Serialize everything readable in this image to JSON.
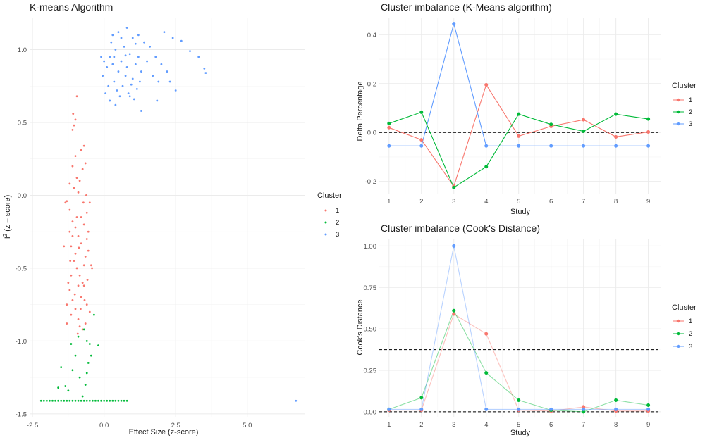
{
  "colors": {
    "1": "#F8766D",
    "2": "#00BA38",
    "3": "#619CFF"
  },
  "chart_data": [
    {
      "id": "kmeans",
      "type": "scatter",
      "title": "K-means Algorithm",
      "xlabel": "Effect Size (z-score)",
      "ylabel_prefix": "I",
      "ylabel_sup": "2",
      "ylabel_suffix": " (z – score)",
      "xlim": [
        -2.6,
        7.0
      ],
      "ylim": [
        -1.52,
        1.22
      ],
      "xticks": [
        -2.5,
        0.0,
        2.5,
        5.0
      ],
      "xtick_labels": [
        "-2.5",
        "0.0",
        "2.5",
        "5.0"
      ],
      "yticks": [
        -1.5,
        -1.0,
        -0.5,
        0.0,
        0.5,
        1.0
      ],
      "ytick_labels": [
        "-1.5",
        "-1.0",
        "-0.5",
        "0.0",
        "0.5",
        "1.0"
      ],
      "legend": {
        "title": "Cluster",
        "labels": [
          "1",
          "2",
          "3"
        ],
        "placement": "right"
      },
      "series": [
        {
          "name": "1",
          "points": [
            [
              -1.3,
              -0.04
            ],
            [
              -1.2,
              -0.1
            ],
            [
              -1.1,
              -0.18
            ],
            [
              -1.0,
              -0.22
            ],
            [
              -0.9,
              -0.28
            ],
            [
              -0.8,
              -0.33
            ],
            [
              -0.7,
              -0.2
            ],
            [
              -0.6,
              -0.12
            ],
            [
              -0.5,
              -0.05
            ],
            [
              -1.15,
              -0.35
            ],
            [
              -1.05,
              -0.45
            ],
            [
              -0.95,
              -0.5
            ],
            [
              -0.85,
              -0.55
            ],
            [
              -0.75,
              -0.6
            ],
            [
              -0.65,
              -0.42
            ],
            [
              -0.55,
              -0.38
            ],
            [
              -1.2,
              -0.65
            ],
            [
              -1.1,
              -0.72
            ],
            [
              -1.0,
              -0.78
            ],
            [
              -0.9,
              -0.85
            ],
            [
              -0.8,
              -0.7
            ],
            [
              -0.7,
              -0.62
            ],
            [
              -0.6,
              -0.75
            ],
            [
              -0.5,
              -0.8
            ],
            [
              -1.3,
              -0.88
            ],
            [
              -1.15,
              -0.82
            ],
            [
              -0.85,
              -0.9
            ],
            [
              -0.45,
              -0.48
            ],
            [
              -0.42,
              -0.5
            ],
            [
              -1.05,
              0.05
            ],
            [
              -0.95,
              0.12
            ],
            [
              -0.85,
              0.1
            ],
            [
              -0.75,
              0.18
            ],
            [
              -0.65,
              0.22
            ],
            [
              -1.0,
              0.27
            ],
            [
              -0.8,
              0.31
            ],
            [
              -0.7,
              0.34
            ],
            [
              -1.1,
              0.2
            ],
            [
              -1.2,
              0.08
            ],
            [
              -0.9,
              0.02
            ],
            [
              -1.1,
              0.45
            ],
            [
              -1.05,
              0.48
            ],
            [
              -1.0,
              0.52
            ],
            [
              -1.08,
              0.56
            ],
            [
              -0.95,
              0.68
            ],
            [
              -1.3,
              -0.75
            ],
            [
              -1.25,
              -0.6
            ],
            [
              -1.4,
              -0.35
            ],
            [
              -1.35,
              -0.05
            ],
            [
              -0.6,
              -0.3
            ],
            [
              -0.55,
              -0.25
            ],
            [
              -0.7,
              -0.48
            ],
            [
              -0.9,
              -0.62
            ],
            [
              -1.15,
              -0.55
            ],
            [
              -1.1,
              -0.28
            ],
            [
              -0.8,
              -0.15
            ],
            [
              -0.62,
              0.0
            ],
            [
              -1.0,
              -0.4
            ],
            [
              -0.75,
              -0.92
            ],
            [
              -0.65,
              -0.88
            ],
            [
              -1.2,
              -0.25
            ],
            [
              -0.95,
              -0.15
            ],
            [
              -0.72,
              -0.05
            ],
            [
              -0.88,
              -0.36
            ],
            [
              -0.58,
              -0.58
            ],
            [
              -1.02,
              -0.68
            ],
            [
              -0.82,
              -0.78
            ],
            [
              -1.18,
              -0.45
            ],
            [
              -0.68,
              -0.72
            ],
            [
              -0.92,
              -0.95
            ]
          ]
        },
        {
          "name": "2",
          "points": [
            [
              -2.2,
              -1.41
            ],
            [
              -2.1,
              -1.41
            ],
            [
              -2.0,
              -1.41
            ],
            [
              -1.9,
              -1.41
            ],
            [
              -1.8,
              -1.41
            ],
            [
              -1.7,
              -1.41
            ],
            [
              -1.6,
              -1.41
            ],
            [
              -1.5,
              -1.41
            ],
            [
              -1.4,
              -1.41
            ],
            [
              -1.3,
              -1.41
            ],
            [
              -1.2,
              -1.41
            ],
            [
              -1.1,
              -1.41
            ],
            [
              -1.0,
              -1.41
            ],
            [
              -0.9,
              -1.41
            ],
            [
              -0.8,
              -1.41
            ],
            [
              -0.7,
              -1.41
            ],
            [
              -0.6,
              -1.41
            ],
            [
              -0.5,
              -1.41
            ],
            [
              -0.4,
              -1.41
            ],
            [
              -0.3,
              -1.41
            ],
            [
              -0.2,
              -1.41
            ],
            [
              -0.1,
              -1.41
            ],
            [
              0.0,
              -1.41
            ],
            [
              0.1,
              -1.41
            ],
            [
              0.2,
              -1.41
            ],
            [
              0.3,
              -1.41
            ],
            [
              0.4,
              -1.41
            ],
            [
              0.5,
              -1.41
            ],
            [
              0.6,
              -1.41
            ],
            [
              0.7,
              -1.41
            ],
            [
              0.8,
              -1.41
            ],
            [
              -1.35,
              -1.31
            ],
            [
              -1.25,
              -1.34
            ],
            [
              -1.6,
              -1.32
            ],
            [
              -1.1,
              -1.2
            ],
            [
              -1.0,
              -1.1
            ],
            [
              -1.15,
              -1.02
            ],
            [
              -0.9,
              -0.97
            ],
            [
              -0.7,
              -0.92
            ],
            [
              -0.6,
              -1.22
            ],
            [
              -0.55,
              -1.15
            ],
            [
              -0.65,
              -1.3
            ],
            [
              -0.75,
              -1.38
            ],
            [
              -0.45,
              -1.1
            ],
            [
              -0.35,
              -0.82
            ],
            [
              -0.2,
              -1.03
            ],
            [
              -0.5,
              -1.02
            ],
            [
              -0.6,
              -1.0
            ],
            [
              -1.5,
              -1.18
            ],
            [
              -0.85,
              -1.25
            ]
          ]
        },
        {
          "name": "3",
          "points": [
            [
              0.2,
              0.95
            ],
            [
              0.3,
              0.9
            ],
            [
              0.4,
              1.0
            ],
            [
              0.5,
              0.85
            ],
            [
              0.6,
              0.92
            ],
            [
              0.7,
              1.02
            ],
            [
              0.8,
              0.88
            ],
            [
              0.9,
              0.97
            ],
            [
              1.0,
              0.8
            ],
            [
              1.1,
              0.9
            ],
            [
              1.2,
              0.95
            ],
            [
              1.3,
              0.85
            ],
            [
              0.25,
              1.05
            ],
            [
              0.35,
              0.78
            ],
            [
              0.45,
              0.72
            ],
            [
              0.55,
              0.68
            ],
            [
              0.65,
              0.75
            ],
            [
              0.75,
              0.82
            ],
            [
              0.85,
              0.7
            ],
            [
              0.95,
              0.76
            ],
            [
              1.05,
              0.66
            ],
            [
              1.15,
              0.73
            ],
            [
              1.25,
              0.78
            ],
            [
              0.1,
              0.88
            ],
            [
              0.0,
              0.92
            ],
            [
              -0.1,
              0.95
            ],
            [
              -0.05,
              0.82
            ],
            [
              0.15,
              0.75
            ],
            [
              0.05,
              0.7
            ],
            [
              0.3,
              1.1
            ],
            [
              0.5,
              1.12
            ],
            [
              0.8,
              1.15
            ],
            [
              1.0,
              1.08
            ],
            [
              1.2,
              1.1
            ],
            [
              1.4,
              1.05
            ],
            [
              1.6,
              1.02
            ],
            [
              1.5,
              0.92
            ],
            [
              1.8,
              0.95
            ],
            [
              2.0,
              0.9
            ],
            [
              1.7,
              0.82
            ],
            [
              1.9,
              0.78
            ],
            [
              2.2,
              0.85
            ],
            [
              2.3,
              0.78
            ],
            [
              2.5,
              0.72
            ],
            [
              2.1,
              1.12
            ],
            [
              2.4,
              1.08
            ],
            [
              2.7,
              1.06
            ],
            [
              3.0,
              0.99
            ],
            [
              3.3,
              0.95
            ],
            [
              3.5,
              0.87
            ],
            [
              3.55,
              0.84
            ],
            [
              1.3,
              0.58
            ],
            [
              1.85,
              0.65
            ],
            [
              0.2,
              0.65
            ],
            [
              0.4,
              0.62
            ],
            [
              0.9,
              0.68
            ],
            [
              1.1,
              1.04
            ],
            [
              0.6,
              1.08
            ],
            [
              0.35,
              0.95
            ],
            [
              0.75,
              0.96
            ],
            [
              6.7,
              -1.41
            ]
          ]
        }
      ]
    },
    {
      "id": "imbalance_kmeans",
      "type": "line",
      "title": "Cluster imbalance (K-Means algorithm)",
      "xlabel": "Study",
      "ylabel": "Delta Percentage",
      "x": [
        1,
        2,
        3,
        4,
        5,
        6,
        7,
        8,
        9
      ],
      "xtick_labels": [
        "1",
        "2",
        "3",
        "4",
        "5",
        "6",
        "7",
        "8",
        "9"
      ],
      "xlim": [
        0.7,
        9.4
      ],
      "ylim": [
        -0.25,
        0.47
      ],
      "yticks": [
        -0.2,
        0.0,
        0.2,
        0.4
      ],
      "ytick_labels": [
        "-0.2",
        "0.0",
        "0.2",
        "0.4"
      ],
      "hline": [
        0.0
      ],
      "line_opacity": 1.0,
      "legend": {
        "title": "Cluster",
        "labels": [
          "1",
          "2",
          "3"
        ],
        "placement": "right"
      },
      "series": [
        {
          "name": "1",
          "values": [
            0.02,
            -0.03,
            -0.22,
            0.195,
            -0.015,
            0.025,
            0.052,
            -0.018,
            0.002
          ]
        },
        {
          "name": "2",
          "values": [
            0.037,
            0.083,
            -0.225,
            -0.14,
            0.075,
            0.033,
            0.005,
            0.075,
            0.055
          ]
        },
        {
          "name": "3",
          "values": [
            -0.055,
            -0.055,
            0.445,
            -0.055,
            -0.055,
            -0.055,
            -0.055,
            -0.055,
            -0.055
          ]
        }
      ]
    },
    {
      "id": "imbalance_cooks",
      "type": "line",
      "title": "Cluster imbalance (Cook's Distance)",
      "xlabel": "Study",
      "ylabel": "Cook's Distance",
      "x": [
        1,
        2,
        3,
        4,
        5,
        6,
        7,
        8,
        9
      ],
      "xtick_labels": [
        "1",
        "2",
        "3",
        "4",
        "5",
        "6",
        "7",
        "8",
        "9"
      ],
      "xlim": [
        0.7,
        9.4
      ],
      "ylim": [
        -0.03,
        1.04
      ],
      "yticks": [
        0.0,
        0.25,
        0.5,
        0.75,
        1.0
      ],
      "ytick_labels": [
        "0.00",
        "0.25",
        "0.50",
        "0.75",
        "1.00"
      ],
      "hline": [
        0.375,
        0.0
      ],
      "line_opacity": 0.45,
      "legend": {
        "title": "Cluster",
        "labels": [
          "1",
          "2",
          "3"
        ],
        "placement": "right"
      },
      "series": [
        {
          "name": "1",
          "values": [
            0.01,
            0.01,
            0.59,
            0.47,
            0.01,
            0.005,
            0.03,
            0.005,
            0.005
          ]
        },
        {
          "name": "2",
          "values": [
            0.015,
            0.085,
            0.61,
            0.235,
            0.07,
            0.01,
            0.0,
            0.07,
            0.04
          ]
        },
        {
          "name": "3",
          "values": [
            0.015,
            0.015,
            1.0,
            0.015,
            0.015,
            0.015,
            0.015,
            0.015,
            0.015
          ]
        }
      ]
    }
  ]
}
